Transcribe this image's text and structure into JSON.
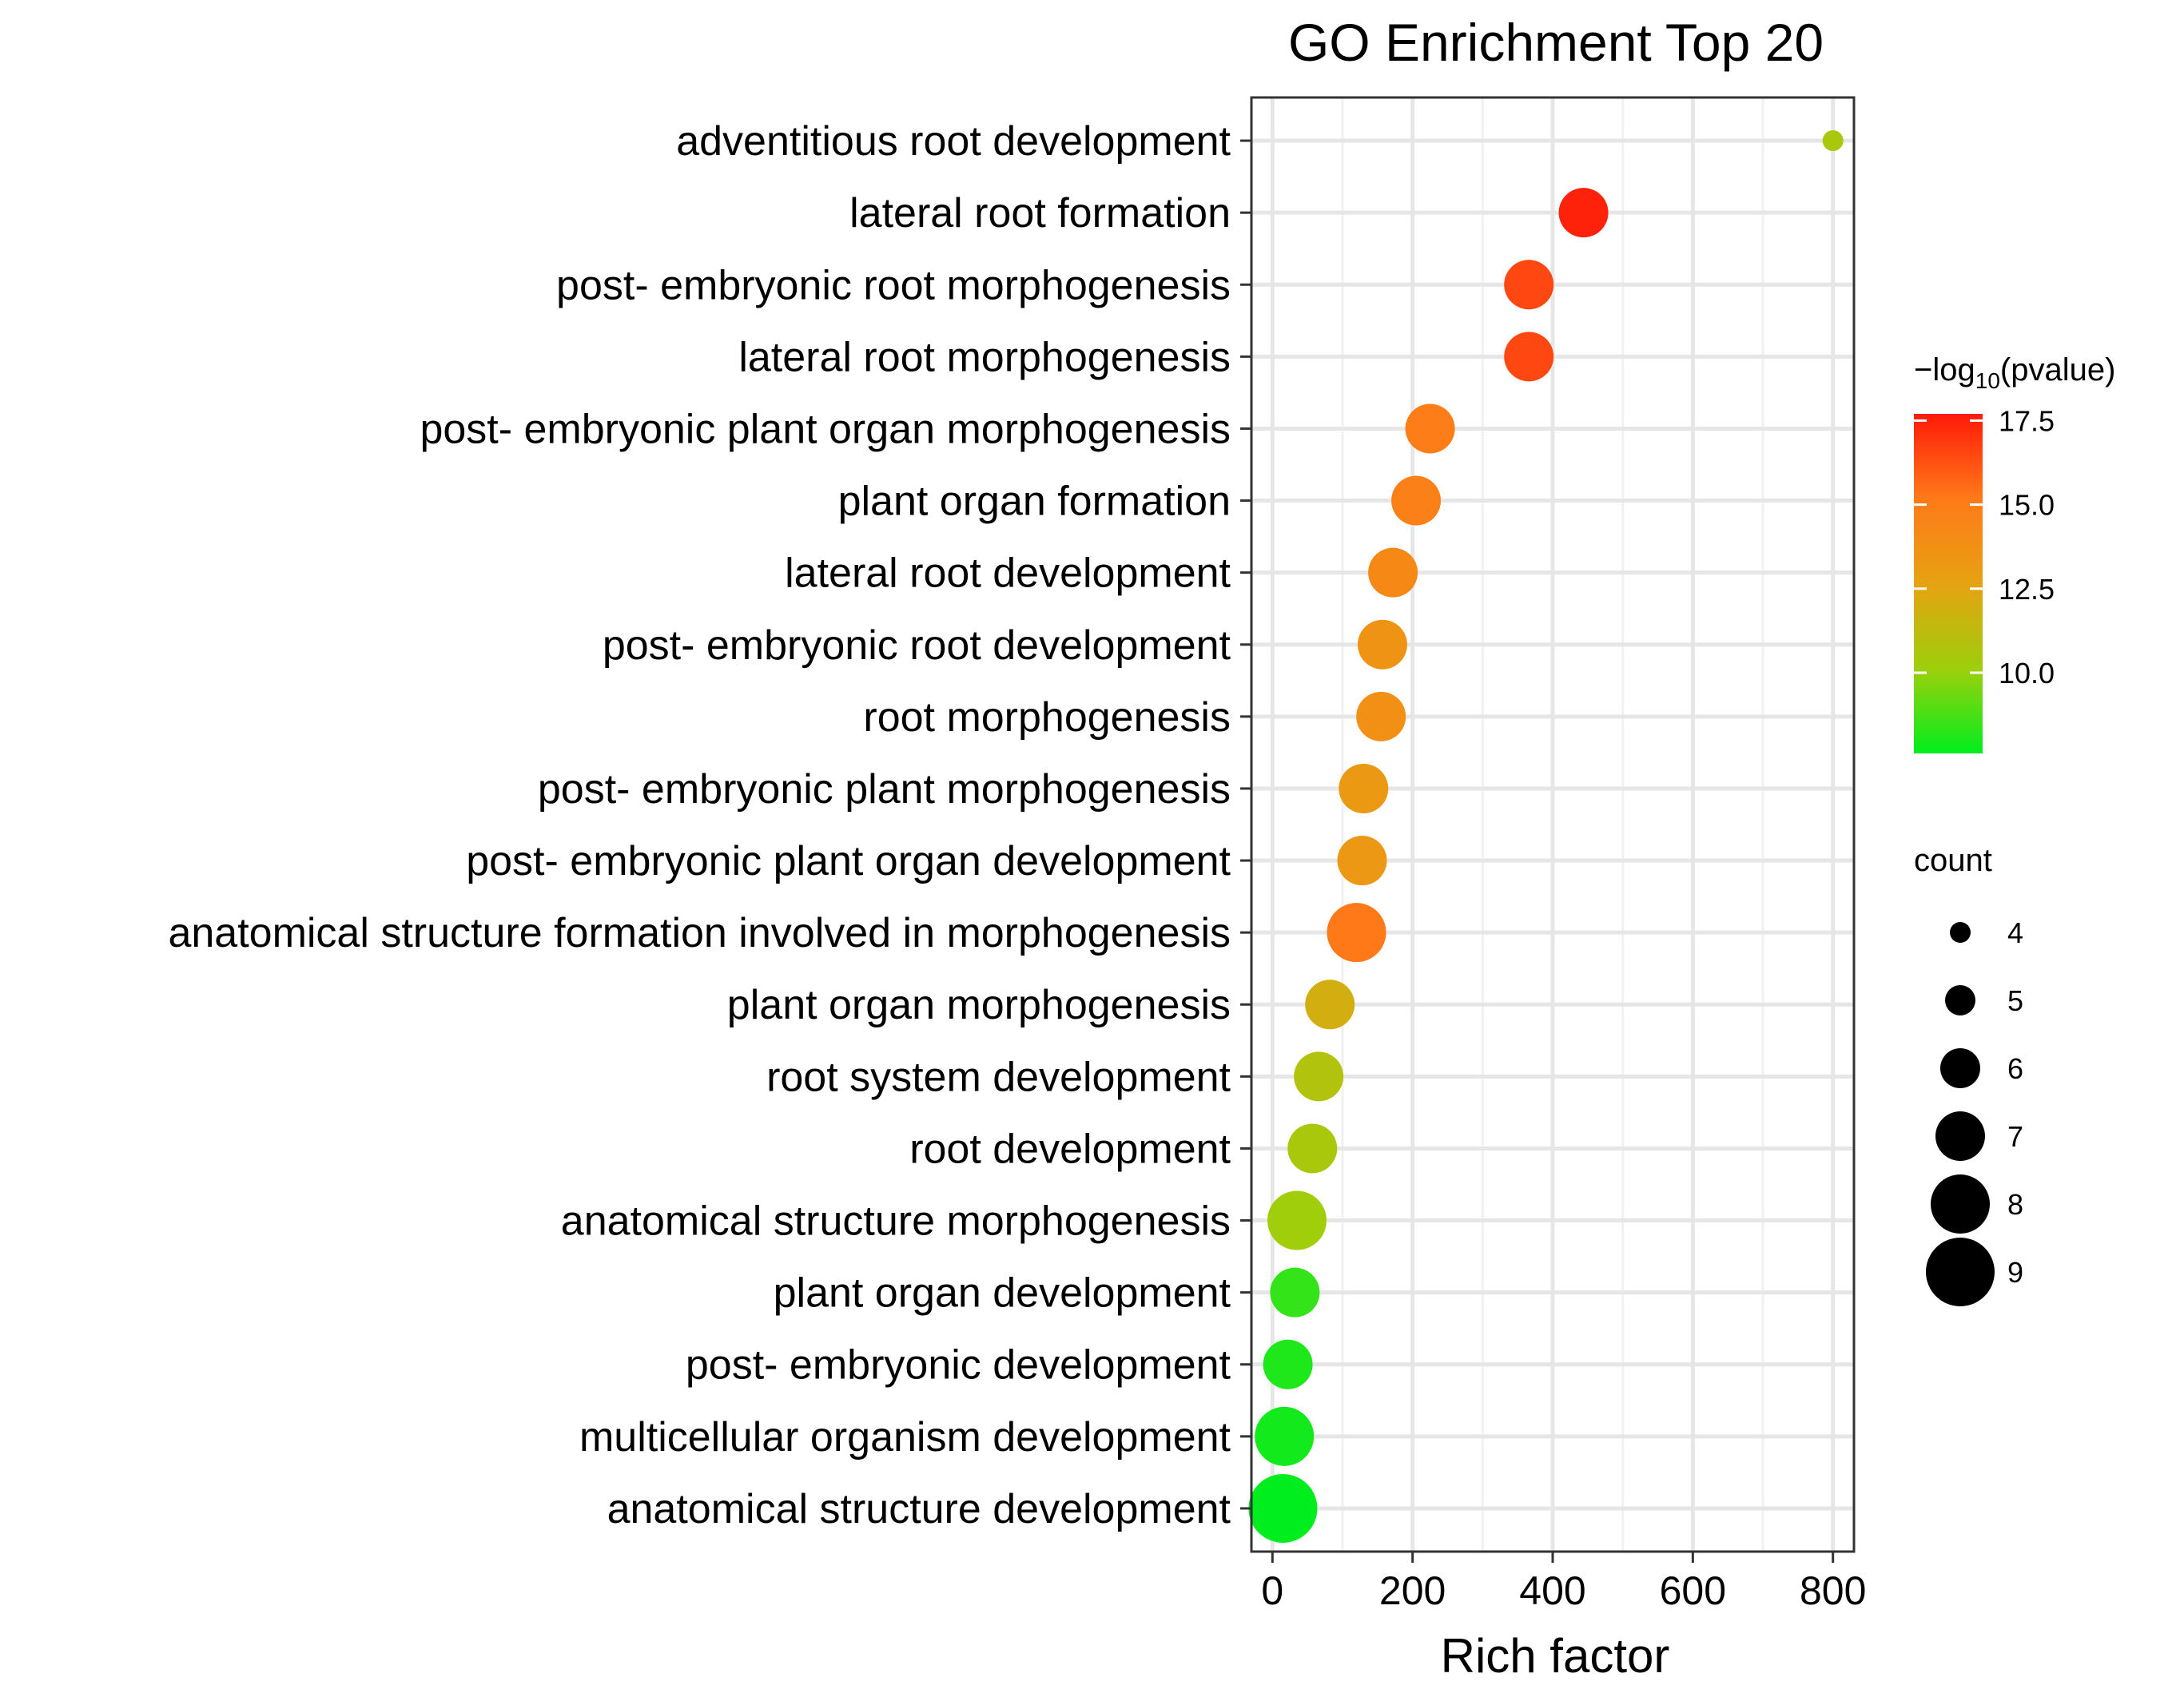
{
  "chart_data": {
    "type": "scatter",
    "title": "GO Enrichment Top 20",
    "xlabel": "Rich factor",
    "ylabel": "",
    "xlim": [
      -30,
      830
    ],
    "xticks": [
      0,
      200,
      400,
      600,
      800
    ],
    "xtick_labels": [
      "0",
      "200",
      "400",
      "600",
      "800"
    ],
    "grid": true,
    "points": [
      {
        "term": "adventitious root development",
        "rich_factor": 800,
        "count": 4,
        "neg_log10_p": 10.5
      },
      {
        "term": "lateral root formation",
        "rich_factor": 444,
        "count": 7,
        "neg_log10_p": 17.5
      },
      {
        "term": "post- embryonic root morphogenesis",
        "rich_factor": 366,
        "count": 7,
        "neg_log10_p": 16.5
      },
      {
        "term": "lateral root morphogenesis",
        "rich_factor": 366,
        "count": 7,
        "neg_log10_p": 16.5
      },
      {
        "term": "post- embryonic plant organ morphogenesis",
        "rich_factor": 225,
        "count": 7,
        "neg_log10_p": 15.0
      },
      {
        "term": "plant organ formation",
        "rich_factor": 205,
        "count": 7,
        "neg_log10_p": 14.8
      },
      {
        "term": "lateral root development",
        "rich_factor": 172,
        "count": 7,
        "neg_log10_p": 14.3
      },
      {
        "term": "post- embryonic root development",
        "rich_factor": 157,
        "count": 7,
        "neg_log10_p": 13.6
      },
      {
        "term": "root morphogenesis",
        "rich_factor": 155,
        "count": 7,
        "neg_log10_p": 13.8
      },
      {
        "term": "post- embryonic plant morphogenesis",
        "rich_factor": 130,
        "count": 7,
        "neg_log10_p": 13.2
      },
      {
        "term": "post- embryonic plant organ development",
        "rich_factor": 128,
        "count": 7,
        "neg_log10_p": 13.3
      },
      {
        "term": "anatomical structure formation involved in morphogenesis",
        "rich_factor": 120,
        "count": 8,
        "neg_log10_p": 15.2
      },
      {
        "term": "plant organ morphogenesis",
        "rich_factor": 82,
        "count": 7,
        "neg_log10_p": 12.0
      },
      {
        "term": "root system development",
        "rich_factor": 66,
        "count": 7,
        "neg_log10_p": 10.8
      },
      {
        "term": "root development",
        "rich_factor": 57,
        "count": 7,
        "neg_log10_p": 10.5
      },
      {
        "term": "anatomical structure morphogenesis",
        "rich_factor": 35,
        "count": 8,
        "neg_log10_p": 10.2
      },
      {
        "term": "plant organ development",
        "rich_factor": 32,
        "count": 7,
        "neg_log10_p": 8.4
      },
      {
        "term": "post- embryonic development",
        "rich_factor": 22,
        "count": 7,
        "neg_log10_p": 8.1
      },
      {
        "term": "multicellular organism development",
        "rich_factor": 17,
        "count": 8,
        "neg_log10_p": 7.9
      },
      {
        "term": "anatomical structure development",
        "rich_factor": 15,
        "count": 9,
        "neg_log10_p": 7.6
      }
    ],
    "color_legend": {
      "title_prefix": "−log",
      "title_sub": "10",
      "title_suffix": "(pvalue)",
      "min": 7.6,
      "max": 17.7,
      "ticks": [
        17.5,
        15.0,
        12.5,
        10.0
      ],
      "tick_labels": [
        "17.5",
        "15.0",
        "12.5",
        "10.0"
      ],
      "colors": [
        "#00ee1e",
        "#9ecf0a",
        "#e6a212",
        "#ff7a18",
        "#ff1a0a"
      ]
    },
    "size_legend": {
      "title": "count",
      "values": [
        4,
        5,
        6,
        7,
        8,
        9
      ],
      "labels": [
        "4",
        "5",
        "6",
        "7",
        "8",
        "9"
      ],
      "color": "#000000"
    }
  }
}
